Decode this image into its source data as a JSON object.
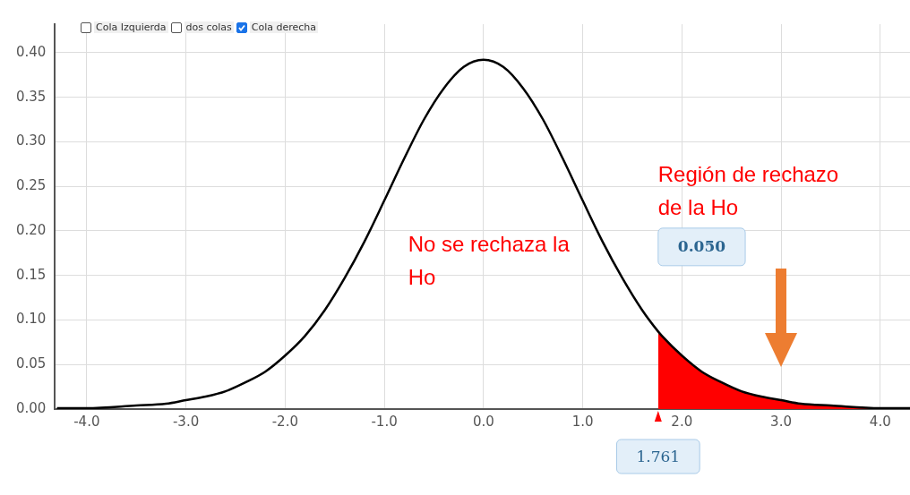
{
  "chart_data": {
    "type": "line",
    "xlim": [
      -4.32,
      4.3
    ],
    "ylim": [
      0,
      0.432
    ],
    "xticks": [
      {
        "value": -4,
        "label": "-4.0"
      },
      {
        "value": -3,
        "label": "-3.0"
      },
      {
        "value": -2,
        "label": "-2.0"
      },
      {
        "value": -1,
        "label": "-1.0"
      },
      {
        "value": 0,
        "label": "0.0"
      },
      {
        "value": 1,
        "label": "1.0"
      },
      {
        "value": 2,
        "label": "2.0"
      },
      {
        "value": 3,
        "label": "3.0"
      },
      {
        "value": 4,
        "label": "4.0"
      }
    ],
    "yticks": [
      {
        "value": 0,
        "label": "0.00"
      },
      {
        "value": 0.05,
        "label": "0.05"
      },
      {
        "value": 0.1,
        "label": "0.10"
      },
      {
        "value": 0.15,
        "label": "0.15"
      },
      {
        "value": 0.2,
        "label": "0.20"
      },
      {
        "value": 0.25,
        "label": "0.25"
      },
      {
        "value": 0.3,
        "label": "0.30"
      },
      {
        "value": 0.35,
        "label": "0.35"
      },
      {
        "value": 0.4,
        "label": "0.40"
      }
    ],
    "grid": true,
    "marker": "none",
    "line_style": "solid",
    "series": [
      {
        "color": "#000000",
        "x": [
          -4.3,
          -4.0,
          -3.5,
          -3.2,
          -3.0,
          -2.8,
          -2.6,
          -2.4,
          -2.2,
          -2.0,
          -1.8,
          -1.6,
          -1.4,
          -1.2,
          -1.0,
          -0.8,
          -0.6,
          -0.4,
          -0.2,
          0.0,
          0.2,
          0.4,
          0.6,
          0.8,
          1.0,
          1.2,
          1.4,
          1.6,
          1.761,
          1.8,
          2.0,
          2.2,
          2.4,
          2.6,
          2.8,
          3.0,
          3.2,
          3.5,
          4.0,
          4.3
        ],
        "values": [
          0.001,
          0.001,
          0.004,
          0.006,
          0.01,
          0.014,
          0.02,
          0.03,
          0.042,
          0.06,
          0.082,
          0.111,
          0.147,
          0.188,
          0.234,
          0.281,
          0.325,
          0.36,
          0.384,
          0.392,
          0.384,
          0.36,
          0.325,
          0.281,
          0.234,
          0.188,
          0.147,
          0.111,
          0.087,
          0.082,
          0.06,
          0.042,
          0.03,
          0.02,
          0.014,
          0.01,
          0.006,
          0.004,
          0.001,
          0.001
        ]
      },
      {
        "type": "area",
        "color": "#ff0000",
        "x": [
          1.761,
          1.8,
          2.0,
          2.2,
          2.4,
          2.6,
          2.8,
          3.0,
          3.2,
          3.5,
          4.0,
          4.3
        ],
        "values": [
          0.087,
          0.082,
          0.06,
          0.042,
          0.03,
          0.02,
          0.014,
          0.01,
          0.006,
          0.004,
          0.001,
          0.001
        ]
      }
    ],
    "annotations": [
      "Cola Izquierda",
      "dos colas",
      "Cola derecha",
      "No se rechaza la Ho",
      "Región de rechazo de la Ho",
      "0.050",
      {
        "text": "1.761",
        "x": 1.761,
        "y": 0
      }
    ]
  }
}
